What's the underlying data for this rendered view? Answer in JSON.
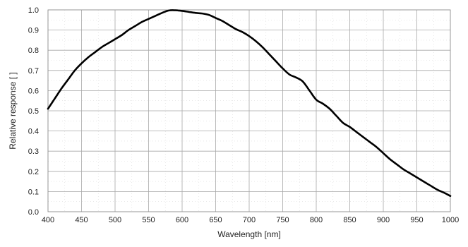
{
  "chart_data": {
    "type": "line",
    "xlabel": "Wavelength [nm]",
    "ylabel": "Relative response [ ]",
    "xlim": [
      400,
      1000
    ],
    "ylim": [
      0.0,
      1.0
    ],
    "x_ticks": [
      400,
      450,
      500,
      550,
      600,
      650,
      700,
      750,
      800,
      850,
      900,
      950,
      1000
    ],
    "y_ticks": [
      0.0,
      0.1,
      0.2,
      0.3,
      0.4,
      0.5,
      0.6,
      0.7,
      0.8,
      0.9,
      1.0
    ],
    "x_tick_labels": [
      "400",
      "450",
      "500",
      "550",
      "600",
      "650",
      "700",
      "750",
      "800",
      "850",
      "900",
      "950",
      "1000"
    ],
    "y_tick_labels": [
      "0.0",
      "0.1",
      "0.2",
      "0.3",
      "0.4",
      "0.5",
      "0.6",
      "0.7",
      "0.8",
      "0.9",
      "1.0"
    ],
    "grid": true,
    "legend": "none",
    "line_color": "#000000",
    "series": [
      {
        "x": [
          400,
          410,
          420,
          430,
          440,
          450,
          460,
          470,
          480,
          490,
          500,
          510,
          520,
          530,
          540,
          550,
          560,
          570,
          580,
          590,
          600,
          610,
          620,
          630,
          640,
          650,
          660,
          670,
          680,
          690,
          700,
          710,
          720,
          730,
          740,
          750,
          760,
          770,
          780,
          790,
          800,
          810,
          820,
          830,
          840,
          850,
          860,
          870,
          880,
          890,
          900,
          910,
          920,
          930,
          940,
          950,
          960,
          970,
          980,
          990,
          1000
        ],
        "y": [
          0.51,
          0.56,
          0.61,
          0.655,
          0.7,
          0.735,
          0.765,
          0.79,
          0.815,
          0.835,
          0.855,
          0.875,
          0.9,
          0.92,
          0.94,
          0.955,
          0.97,
          0.985,
          0.997,
          0.998,
          0.995,
          0.99,
          0.985,
          0.982,
          0.975,
          0.96,
          0.945,
          0.925,
          0.905,
          0.89,
          0.87,
          0.845,
          0.815,
          0.78,
          0.745,
          0.71,
          0.68,
          0.665,
          0.645,
          0.6,
          0.555,
          0.535,
          0.51,
          0.475,
          0.44,
          0.42,
          0.395,
          0.37,
          0.345,
          0.32,
          0.29,
          0.26,
          0.235,
          0.21,
          0.19,
          0.17,
          0.15,
          0.13,
          0.11,
          0.095,
          0.078
        ]
      }
    ]
  }
}
